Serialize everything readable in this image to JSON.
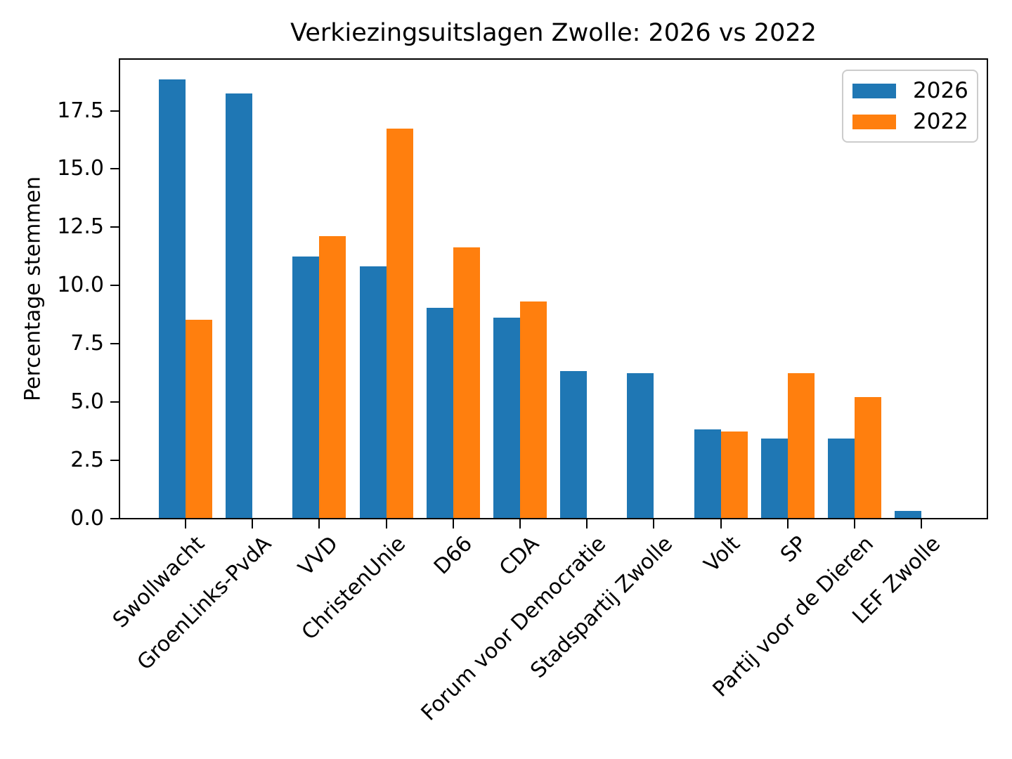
{
  "chart_data": {
    "type": "bar",
    "title": "Verkiezingsuitslagen Zwolle: 2026 vs 2022",
    "xlabel": "",
    "ylabel": "Percentage stemmen",
    "ylim": [
      0,
      19.75
    ],
    "ytick_labels": [
      "0.0",
      "2.5",
      "5.0",
      "7.5",
      "10.0",
      "12.5",
      "15.0",
      "17.5"
    ],
    "grid": false,
    "legend_position": "upper right",
    "categories": [
      "Swollwacht",
      "GroenLinks-PvdA",
      "VVD",
      "ChristenUnie",
      "D66",
      "CDA",
      "Forum voor Democratie",
      "Stadspartij Zwolle",
      "Volt",
      "SP",
      "Partij voor de Dieren",
      "LEF Zwolle"
    ],
    "series": [
      {
        "name": "2026",
        "color": "#1f77b4",
        "values": [
          18.8,
          18.2,
          11.2,
          10.8,
          9.0,
          8.6,
          6.3,
          6.2,
          3.8,
          3.4,
          3.4,
          0.3
        ]
      },
      {
        "name": "2022",
        "color": "#ff7f0e",
        "values": [
          8.5,
          0.0,
          12.1,
          16.7,
          11.6,
          9.3,
          0.0,
          0.0,
          3.7,
          6.2,
          5.2,
          0.0
        ]
      }
    ]
  }
}
